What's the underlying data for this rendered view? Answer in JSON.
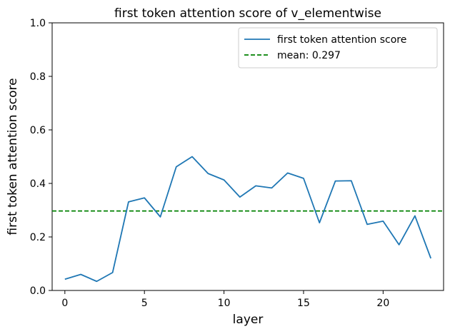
{
  "chart_data": {
    "type": "line",
    "title": "first token attention score of v_elementwise",
    "xlabel": "layer",
    "ylabel": "first token attention score",
    "xlim": [
      -0.8,
      23.8
    ],
    "ylim": [
      0.0,
      1.0
    ],
    "xticks": [
      0,
      5,
      10,
      15,
      20
    ],
    "yticks": [
      0.0,
      0.2,
      0.4,
      0.6,
      0.8,
      1.0
    ],
    "xtick_labels": [
      "0",
      "5",
      "10",
      "15",
      "20"
    ],
    "ytick_labels": [
      "0.0",
      "0.2",
      "0.4",
      "0.6",
      "0.8",
      "1.0"
    ],
    "grid": false,
    "legend_position": "top-right",
    "series": [
      {
        "name": "first token attention score",
        "color": "#1f77b4",
        "x": [
          0,
          1,
          2,
          3,
          4,
          5,
          6,
          7,
          8,
          9,
          10,
          11,
          12,
          13,
          14,
          15,
          16,
          17,
          18,
          19,
          20,
          21,
          22,
          23
        ],
        "values": [
          0.042,
          0.06,
          0.034,
          0.067,
          0.331,
          0.346,
          0.275,
          0.462,
          0.5,
          0.437,
          0.413,
          0.349,
          0.391,
          0.383,
          0.439,
          0.419,
          0.253,
          0.409,
          0.41,
          0.247,
          0.259,
          0.171,
          0.279,
          0.12
        ]
      }
    ],
    "reference_lines": [
      {
        "name": "mean: 0.297",
        "value": 0.297,
        "orientation": "horizontal",
        "color": "#008000",
        "style": "dashed"
      }
    ]
  }
}
